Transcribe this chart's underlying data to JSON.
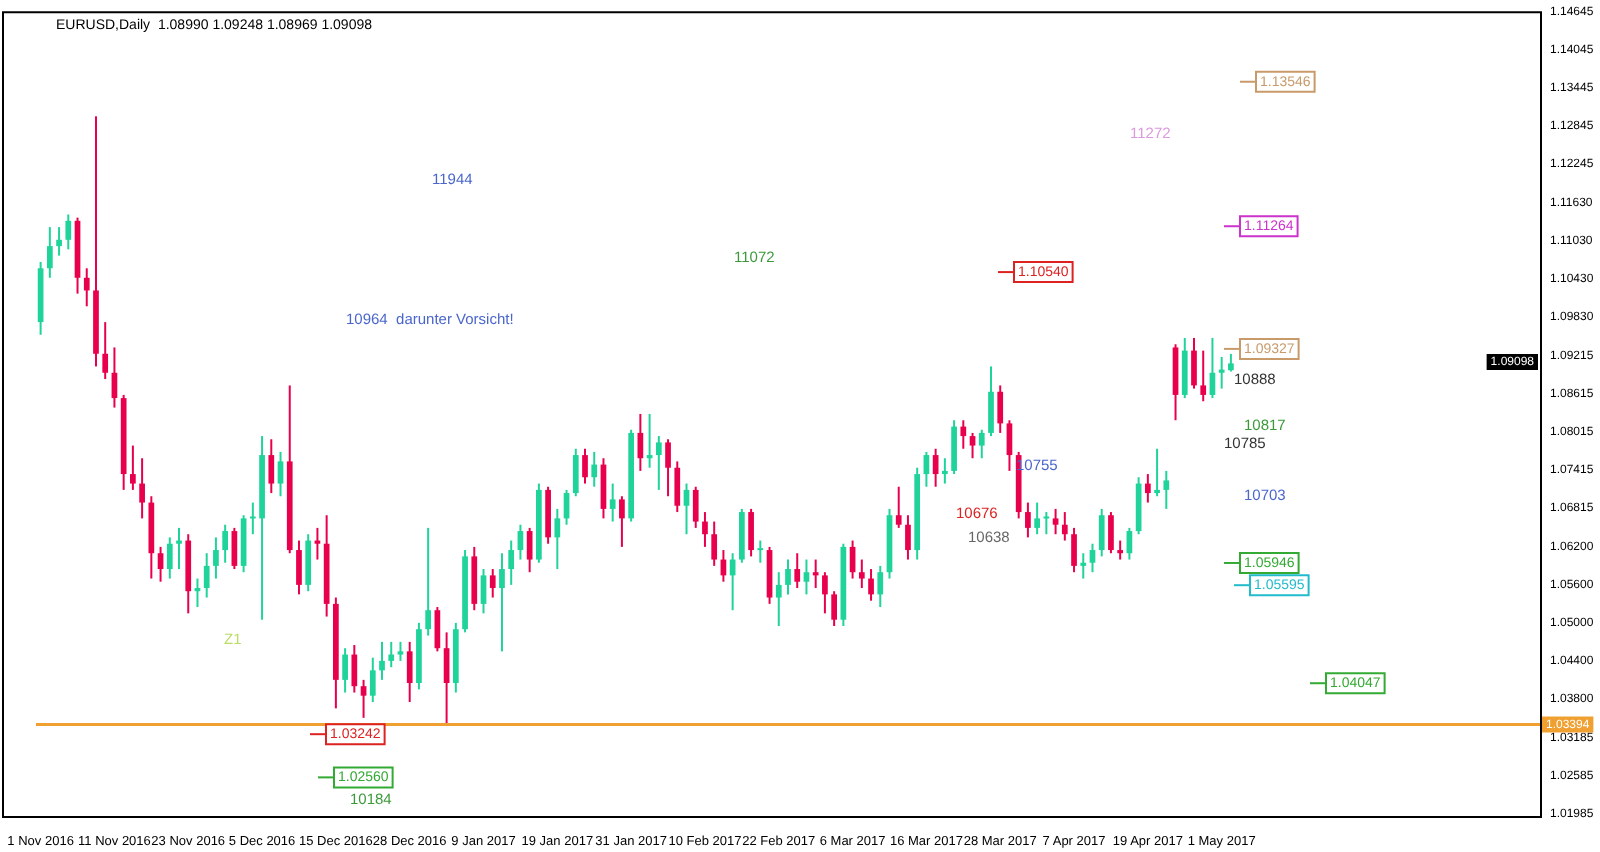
{
  "chart_data": {
    "type": "candlestick",
    "title": "EURUSD,Daily  1.08990 1.09248 1.08969 1.09098",
    "categories": [
      "1 Nov 2016",
      null,
      null,
      null,
      null,
      null,
      null,
      null,
      "11 Nov 2016",
      null,
      null,
      null,
      null,
      null,
      null,
      null,
      "23 Nov 2016",
      null,
      null,
      null,
      null,
      null,
      null,
      null,
      "5 Dec 2016",
      null,
      null,
      null,
      null,
      null,
      null,
      null,
      "15 Dec 2016",
      null,
      null,
      null,
      null,
      null,
      null,
      null,
      "28 Dec 2016",
      null,
      null,
      null,
      null,
      null,
      null,
      null,
      "9 Jan 2017",
      null,
      null,
      null,
      null,
      null,
      null,
      null,
      "19 Jan 2017",
      null,
      null,
      null,
      null,
      null,
      null,
      null,
      "31 Jan 2017",
      null,
      null,
      null,
      null,
      null,
      null,
      null,
      "10 Feb 2017",
      null,
      null,
      null,
      null,
      null,
      null,
      null,
      "22 Feb 2017",
      null,
      null,
      null,
      null,
      null,
      null,
      null,
      "6 Mar 2017",
      null,
      null,
      null,
      null,
      null,
      null,
      null,
      "16 Mar 2017",
      null,
      null,
      null,
      null,
      null,
      null,
      null,
      "28 Mar 2017",
      null,
      null,
      null,
      null,
      null,
      null,
      null,
      "7 Apr 2017",
      null,
      null,
      null,
      null,
      null,
      null,
      null,
      "19 Apr 2017",
      null,
      null,
      null,
      null,
      null,
      null,
      null,
      "1 May 2017",
      null,
      null,
      null,
      null,
      null,
      null,
      null,
      null,
      null,
      null,
      null,
      null,
      null,
      null,
      null,
      null,
      null,
      null,
      null,
      null,
      null,
      null,
      null,
      null,
      null,
      null,
      null,
      null,
      null,
      null,
      null,
      null,
      null,
      null
    ],
    "ohlc": [
      [
        1.0975,
        1.107,
        1.0955,
        1.106
      ],
      [
        1.106,
        1.1125,
        1.1045,
        1.1095
      ],
      [
        1.1095,
        1.1125,
        1.108,
        1.1105
      ],
      [
        1.1105,
        1.1145,
        1.109,
        1.1135
      ],
      [
        1.1135,
        1.114,
        1.102,
        1.1045
      ],
      [
        1.1045,
        1.106,
        1.1,
        1.1025
      ],
      [
        1.1025,
        1.13,
        1.0905,
        1.0925
      ],
      [
        1.0925,
        1.0975,
        1.0885,
        1.0895
      ],
      [
        1.0895,
        1.0935,
        1.084,
        1.0855
      ],
      [
        1.0855,
        1.086,
        1.071,
        1.0735
      ],
      [
        1.0735,
        1.078,
        1.071,
        1.072
      ],
      [
        1.072,
        1.076,
        1.0665,
        1.069
      ],
      [
        1.069,
        1.07,
        1.057,
        1.061
      ],
      [
        1.061,
        1.062,
        1.0565,
        1.0585
      ],
      [
        1.0585,
        1.0635,
        1.057,
        1.0625
      ],
      [
        1.0625,
        1.065,
        1.0585,
        1.063
      ],
      [
        1.063,
        1.064,
        1.0515,
        1.055
      ],
      [
        1.055,
        1.057,
        1.0525,
        1.0555
      ],
      [
        1.0555,
        1.061,
        1.054,
        1.059
      ],
      [
        1.059,
        1.0635,
        1.057,
        1.0615
      ],
      [
        1.0615,
        1.0655,
        1.0595,
        1.0645
      ],
      [
        1.0645,
        1.065,
        1.0585,
        1.059
      ],
      [
        1.059,
        1.067,
        1.058,
        1.0665
      ],
      [
        1.0665,
        1.069,
        1.064,
        1.0668
      ],
      [
        1.0665,
        1.0795,
        1.0505,
        1.0765
      ],
      [
        1.0765,
        1.079,
        1.0705,
        1.072
      ],
      [
        1.072,
        1.077,
        1.07,
        1.0755
      ],
      [
        1.0755,
        1.0875,
        1.061,
        1.0615
      ],
      [
        1.0615,
        1.063,
        1.0545,
        1.056
      ],
      [
        1.056,
        1.064,
        1.055,
        1.063
      ],
      [
        1.063,
        1.065,
        1.06,
        1.0625
      ],
      [
        1.0625,
        1.067,
        1.051,
        1.053
      ],
      [
        1.053,
        1.054,
        1.0365,
        1.041
      ],
      [
        1.041,
        1.046,
        1.039,
        1.045
      ],
      [
        1.045,
        1.0465,
        1.039,
        1.04
      ],
      [
        1.04,
        1.041,
        1.035,
        1.0385
      ],
      [
        1.0385,
        1.0445,
        1.0375,
        1.0425
      ],
      [
        1.0425,
        1.047,
        1.041,
        1.044
      ],
      [
        1.044,
        1.047,
        1.043,
        1.045
      ],
      [
        1.045,
        1.047,
        1.044,
        1.0455
      ],
      [
        1.0455,
        1.047,
        1.0375,
        1.0405
      ],
      [
        1.0405,
        1.05,
        1.0395,
        1.049
      ],
      [
        1.049,
        1.065,
        1.048,
        1.052
      ],
      [
        1.052,
        1.0525,
        1.0455,
        1.046
      ],
      [
        1.046,
        1.0485,
        1.034,
        1.0405
      ],
      [
        1.0405,
        1.05,
        1.039,
        1.049
      ],
      [
        1.049,
        1.0615,
        1.0485,
        1.0605
      ],
      [
        1.0605,
        1.062,
        1.052,
        1.053
      ],
      [
        1.053,
        1.0585,
        1.0515,
        1.0575
      ],
      [
        1.0575,
        1.0585,
        1.054,
        1.0555
      ],
      [
        1.0555,
        1.061,
        1.0455,
        1.0585
      ],
      [
        1.0585,
        1.063,
        1.056,
        1.0615
      ],
      [
        1.0615,
        1.0655,
        1.06,
        1.0645
      ],
      [
        1.0645,
        1.065,
        1.058,
        1.06
      ],
      [
        1.06,
        1.072,
        1.0595,
        1.071
      ],
      [
        1.071,
        1.0715,
        1.0625,
        1.0635
      ],
      [
        1.0635,
        1.068,
        1.0585,
        1.0665
      ],
      [
        1.0665,
        1.071,
        1.0655,
        1.0705
      ],
      [
        1.0705,
        1.0775,
        1.07,
        1.0765
      ],
      [
        1.0765,
        1.0775,
        1.072,
        1.073
      ],
      [
        1.073,
        1.077,
        1.0715,
        1.075
      ],
      [
        1.075,
        1.076,
        1.0665,
        1.068
      ],
      [
        1.068,
        1.072,
        1.066,
        1.0695
      ],
      [
        1.0695,
        1.07,
        1.062,
        1.0665
      ],
      [
        1.0665,
        1.0805,
        1.066,
        1.08
      ],
      [
        1.08,
        1.083,
        1.074,
        1.076
      ],
      [
        1.076,
        1.083,
        1.0745,
        1.0765
      ],
      [
        1.0765,
        1.0795,
        1.071,
        1.0785
      ],
      [
        1.0785,
        1.079,
        1.07,
        1.0745
      ],
      [
        1.0745,
        1.0755,
        1.0675,
        1.0685
      ],
      [
        1.0685,
        1.072,
        1.064,
        1.071
      ],
      [
        1.071,
        1.0715,
        1.065,
        1.066
      ],
      [
        1.066,
        1.0675,
        1.062,
        1.064
      ],
      [
        1.064,
        1.066,
        1.059,
        1.06
      ],
      [
        1.06,
        1.0615,
        1.0565,
        1.0575
      ],
      [
        1.0575,
        1.061,
        1.052,
        1.06
      ],
      [
        1.06,
        1.068,
        1.0595,
        1.0675
      ],
      [
        1.0675,
        1.068,
        1.0605,
        1.0615
      ],
      [
        1.0615,
        1.063,
        1.0595,
        1.0618
      ],
      [
        1.0615,
        1.062,
        1.053,
        1.054
      ],
      [
        1.054,
        1.058,
        1.0495,
        1.056
      ],
      [
        1.056,
        1.06,
        1.0545,
        1.0585
      ],
      [
        1.0585,
        1.061,
        1.0555,
        1.0565
      ],
      [
        1.0565,
        1.06,
        1.0545,
        1.058
      ],
      [
        1.058,
        1.06,
        1.0555,
        1.0575
      ],
      [
        1.0575,
        1.058,
        1.0515,
        1.0545
      ],
      [
        1.0545,
        1.055,
        1.0495,
        1.0505
      ],
      [
        1.0505,
        1.0625,
        1.0495,
        1.062
      ],
      [
        1.062,
        1.063,
        1.057,
        1.058
      ],
      [
        1.058,
        1.06,
        1.0555,
        1.057
      ],
      [
        1.057,
        1.0585,
        1.0535,
        1.0545
      ],
      [
        1.0545,
        1.059,
        1.0525,
        1.058
      ],
      [
        1.058,
        1.068,
        1.057,
        1.067
      ],
      [
        1.067,
        1.0715,
        1.065,
        1.0655
      ],
      [
        1.0655,
        1.067,
        1.06,
        1.0615
      ],
      [
        1.0615,
        1.0745,
        1.06,
        1.0735
      ],
      [
        1.0735,
        1.077,
        1.0715,
        1.0765
      ],
      [
        1.0765,
        1.0775,
        1.0715,
        1.0735
      ],
      [
        1.0735,
        1.076,
        1.072,
        1.074
      ],
      [
        1.074,
        1.082,
        1.0735,
        1.081
      ],
      [
        1.081,
        1.082,
        1.0775,
        1.0795
      ],
      [
        1.0795,
        1.08,
        1.076,
        1.078
      ],
      [
        1.078,
        1.0805,
        1.076,
        1.08
      ],
      [
        1.08,
        1.0905,
        1.0795,
        1.0865
      ],
      [
        1.0865,
        1.0875,
        1.08,
        1.0815
      ],
      [
        1.0815,
        1.082,
        1.074,
        1.0765
      ],
      [
        1.0765,
        1.077,
        1.0665,
        1.0675
      ],
      [
        1.0675,
        1.069,
        1.0635,
        1.065
      ],
      [
        1.065,
        1.069,
        1.064,
        1.0665
      ],
      [
        1.0665,
        1.0675,
        1.064,
        1.0668
      ],
      [
        1.0665,
        1.068,
        1.064,
        1.0655
      ],
      [
        1.0655,
        1.0675,
        1.063,
        1.064
      ],
      [
        1.064,
        1.065,
        1.058,
        1.059
      ],
      [
        1.059,
        1.061,
        1.057,
        1.0595
      ],
      [
        1.0595,
        1.0625,
        1.058,
        1.0615
      ],
      [
        1.0615,
        1.068,
        1.0605,
        1.067
      ],
      [
        1.067,
        1.0675,
        1.061,
        1.0615
      ],
      [
        1.0615,
        1.063,
        1.06,
        1.061
      ],
      [
        1.061,
        1.065,
        1.06,
        1.0645
      ],
      [
        1.0645,
        1.073,
        1.064,
        1.072
      ],
      [
        1.072,
        1.0735,
        1.069,
        1.0705
      ],
      [
        1.0705,
        1.0775,
        1.07,
        1.071
      ],
      [
        1.071,
        1.074,
        1.068,
        1.0725
      ],
      [
        1.0935,
        1.094,
        1.082,
        1.086
      ],
      [
        1.086,
        1.095,
        1.0855,
        1.093
      ],
      [
        1.093,
        1.095,
        1.087,
        1.0875
      ],
      [
        1.0875,
        1.093,
        1.085,
        1.086
      ],
      [
        1.086,
        1.095,
        1.0855,
        1.0895
      ],
      [
        1.0895,
        1.092,
        1.087,
        1.09
      ],
      [
        1.0899,
        1.09248,
        1.08969,
        1.09098
      ],
      null,
      null,
      null,
      null,
      null,
      null,
      null,
      null,
      null,
      null,
      null,
      null,
      null,
      null,
      null,
      null,
      null,
      null,
      null,
      null,
      null,
      null,
      null,
      null,
      null,
      null,
      null,
      null,
      null,
      null,
      null,
      null,
      null
    ],
    "colors": [
      "#1fd39a",
      "#1fd39a",
      "#1fd39a",
      "#1fd39a",
      "#e8004c",
      "#e8004c",
      "#e8004c",
      "#e8004c",
      "#e8004c",
      "#e8004c",
      "#e8004c",
      "#e8004c",
      "#e8004c",
      "#e8004c",
      "#1fd39a",
      "#1fd39a",
      "#e8004c",
      "#1fd39a",
      "#1fd39a",
      "#1fd39a",
      "#1fd39a",
      "#e8004c",
      "#1fd39a",
      "#1fd39a",
      "#1fd39a",
      "#e8004c",
      "#1fd39a",
      "#e8004c",
      "#e8004c",
      "#1fd39a",
      "#e8004c",
      "#e8004c",
      "#e8004c",
      "#1fd39a",
      "#e8004c",
      "#e8004c",
      "#1fd39a",
      "#1fd39a",
      "#1fd39a",
      "#1fd39a",
      "#e8004c",
      "#1fd39a",
      "#1fd39a",
      "#e8004c",
      "#e8004c",
      "#1fd39a",
      "#1fd39a",
      "#e8004c",
      "#1fd39a",
      "#e8004c",
      "#1fd39a",
      "#1fd39a",
      "#1fd39a",
      "#e8004c",
      "#1fd39a",
      "#e8004c",
      "#1fd39a",
      "#1fd39a",
      "#1fd39a",
      "#e8004c",
      "#1fd39a",
      "#e8004c",
      "#1fd39a",
      "#e8004c",
      "#1fd39a",
      "#e8004c",
      "#1fd39a",
      "#1fd39a",
      "#e8004c",
      "#e8004c",
      "#1fd39a",
      "#e8004c",
      "#e8004c",
      "#e8004c",
      "#e8004c",
      "#1fd39a",
      "#1fd39a",
      "#e8004c",
      "#1fd39a",
      "#e8004c",
      "#1fd39a",
      "#1fd39a",
      "#e8004c",
      "#1fd39a",
      "#e8004c",
      "#e8004c",
      "#e8004c",
      "#1fd39a",
      "#e8004c",
      "#e8004c",
      "#e8004c",
      "#1fd39a",
      "#1fd39a",
      "#e8004c",
      "#e8004c",
      "#1fd39a",
      "#1fd39a",
      "#e8004c",
      "#1fd39a",
      "#1fd39a",
      "#e8004c",
      "#e8004c",
      "#1fd39a",
      "#1fd39a",
      "#e8004c",
      "#e8004c",
      "#e8004c",
      "#e8004c",
      "#1fd39a",
      "#1fd39a",
      "#e8004c",
      "#e8004c",
      "#e8004c",
      "#1fd39a",
      "#1fd39a",
      "#1fd39a",
      "#e8004c",
      "#e8004c",
      "#1fd39a",
      "#1fd39a",
      "#e8004c",
      "#1fd39a",
      "#1fd39a",
      "#e8004c",
      "#1fd39a",
      "#e8004c",
      "#e8004c",
      "#1fd39a",
      "#1fd39a",
      "#1fd39a",
      null,
      null,
      null,
      null,
      null,
      null,
      null,
      null,
      null,
      null,
      null,
      null,
      null,
      null,
      null,
      null,
      null,
      null,
      null,
      null,
      null,
      null,
      null,
      null,
      null,
      null,
      null,
      null,
      null,
      null,
      null,
      null,
      null
    ],
    "ylim": [
      1.0195,
      1.1466
    ],
    "yticks": [
      1.14645,
      1.14045,
      1.13445,
      1.12845,
      1.12245,
      {
        "value": 1.1163,
        "label": "1.11630"
      },
      {
        "value": 1.1103,
        "label": "1.11030"
      },
      {
        "value": 1.1043,
        "label": "1.10430"
      },
      {
        "value": 1.0983,
        "label": "1.09830"
      },
      1.09215,
      1.08615,
      1.08015,
      1.07415,
      1.06815,
      {
        "value": 1.062,
        "label": "1.06200"
      },
      {
        "value": 1.056,
        "label": "1.05600"
      },
      {
        "value": 1.05,
        "label": "1.05000"
      },
      {
        "value": 1.044,
        "label": "1.04400"
      },
      {
        "value": 1.038,
        "label": "1.03800"
      },
      1.03185,
      1.02585,
      1.01985
    ],
    "ref_lines": [
      {
        "axis": "y",
        "value": 1.03394,
        "label": "1.03394",
        "color": "#f0a030"
      }
    ],
    "annotations": [
      "11944",
      "10964  darunter Vorsicht!",
      "11072",
      "11272",
      {
        "text": "1.13546",
        "y": 1.13546
      },
      {
        "text": "1.11264",
        "y": 1.11264
      },
      {
        "text": "1.10540",
        "y": 1.1054
      },
      {
        "text": "1.09327",
        "y": 1.09327
      },
      "10888",
      "10817",
      "10785",
      "10755",
      "10703",
      "10676",
      "10638",
      {
        "text": "1.05946",
        "y": 1.05946
      },
      {
        "text": "1.05595",
        "y": 1.05595
      },
      {
        "text": "1.04047",
        "y": 1.04047
      },
      {
        "text": "1.03242",
        "y": 1.03242
      },
      {
        "text": "1.02560",
        "y": 1.0256
      },
      "10184",
      "Z1",
      "1.09098"
    ]
  }
}
